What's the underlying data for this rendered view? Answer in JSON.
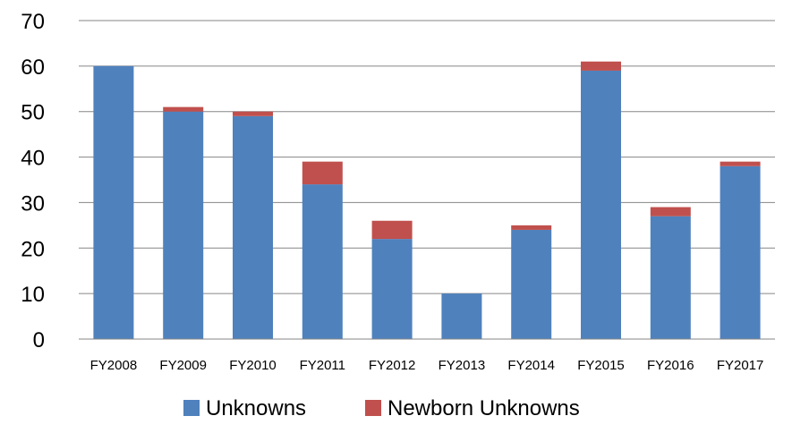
{
  "chart_data": {
    "type": "bar",
    "stacked": true,
    "categories": [
      "FY2008",
      "FY2009",
      "FY2010",
      "FY2011",
      "FY2012",
      "FY2013",
      "FY2014",
      "FY2015",
      "FY2016",
      "FY2017"
    ],
    "series": [
      {
        "name": "Unknowns",
        "color": "#4F81BD",
        "values": [
          60,
          50,
          49,
          34,
          22,
          10,
          24,
          59,
          27,
          38
        ]
      },
      {
        "name": "Newborn Unknowns",
        "color": "#C0504D",
        "values": [
          0,
          1,
          1,
          5,
          4,
          0,
          1,
          2,
          2,
          1
        ]
      }
    ],
    "ylim": [
      0,
      70
    ],
    "yticks": [
      0,
      10,
      20,
      30,
      40,
      50,
      60,
      70
    ],
    "grid": true,
    "legend_position": "bottom",
    "title": "",
    "xlabel": "",
    "ylabel": ""
  }
}
